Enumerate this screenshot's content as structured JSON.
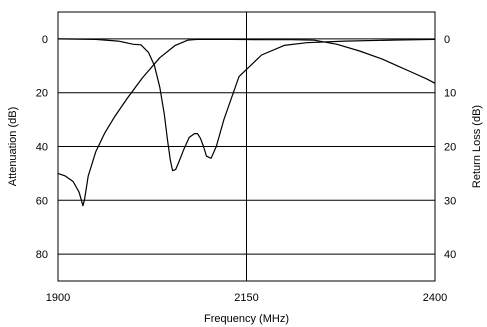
{
  "chart_data": {
    "type": "line",
    "title": "",
    "xlabel": "Frequency (MHz)",
    "ylabel_left": "Attenuation (dB)",
    "ylabel_right": "Return Loss (dB)",
    "xlim": [
      1900,
      2400
    ],
    "ylim_left": [
      90,
      -10
    ],
    "ylim_right": [
      45,
      -5
    ],
    "x_ticks": [
      "1900",
      "2150",
      "2400"
    ],
    "y_ticks_left": [
      "0",
      "20",
      "40",
      "60",
      "80"
    ],
    "y_ticks_right": [
      "0",
      "10",
      "20",
      "30",
      "40"
    ],
    "grid": "horizontal lines at major ticks plus vertical line at 2150",
    "series": [
      {
        "axis": "left",
        "x": [
          1900,
          1910,
          1920,
          1928,
          1933,
          1935,
          1940,
          1950,
          1962,
          1975,
          1992,
          2012,
          2035,
          2055,
          2072,
          2080,
          2085,
          2090,
          2095,
          2100,
          2110,
          2130,
          2170,
          2210,
          2240,
          2270,
          2300,
          2330,
          2350,
          2370,
          2390,
          2400
        ],
        "y": [
          50,
          51,
          53,
          57,
          62,
          60,
          51,
          42,
          35,
          29,
          22,
          14.5,
          7,
          2.5,
          0.5,
          0.3,
          0.2,
          0.2,
          0.2,
          0.2,
          0.2,
          0.2,
          0.3,
          0.3,
          0.5,
          2,
          4.5,
          7.5,
          10,
          12.5,
          15,
          16.5
        ]
      },
      {
        "axis": "right",
        "x": [
          1900,
          1950,
          1980,
          2000,
          2010,
          2020,
          2028,
          2035,
          2041,
          2045,
          2049,
          2052,
          2056,
          2060,
          2067,
          2074,
          2081,
          2085,
          2089,
          2093,
          2097,
          2103,
          2110,
          2120,
          2140,
          2170,
          2200,
          2230,
          2280,
          2350,
          2400
        ],
        "y": [
          0,
          0.1,
          0.4,
          1,
          1.1,
          2.5,
          5,
          9,
          14,
          18.5,
          22.5,
          24.5,
          24.3,
          23,
          20.5,
          18.3,
          17.6,
          17.6,
          18.5,
          20,
          21.8,
          22.2,
          20,
          15,
          7,
          3,
          1.2,
          0.7,
          0.4,
          0.2,
          0.1
        ]
      }
    ]
  }
}
